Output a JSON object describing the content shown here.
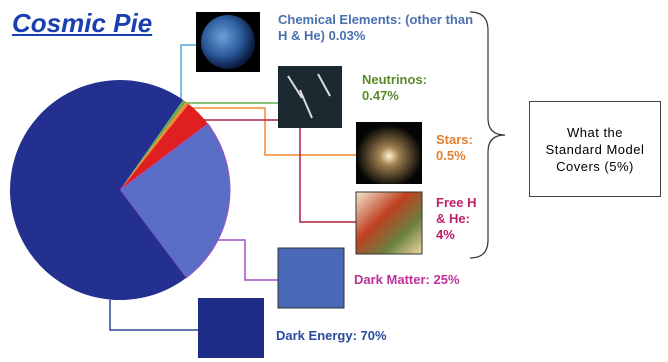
{
  "chart_data": {
    "type": "pie",
    "title": "Cosmic Pie",
    "categories": [
      "Chemical Elements: (other than H & He)",
      "Neutrinos:",
      "Stars:",
      "Free H & He:",
      "Dark Matter:",
      "Dark Energy:"
    ],
    "values": [
      0.03,
      0.47,
      0.5,
      4,
      25,
      70
    ],
    "value_labels": [
      "0.03%",
      "0.47%",
      "0.5%",
      "4%",
      "25%",
      "70%"
    ],
    "colors": [
      "#4fa8d8",
      "#5fae4e",
      "#f08a30",
      "#e02020",
      "#5a6ec6",
      "#23308f"
    ],
    "label_colors": [
      "#4a6fb0",
      "#5a8a2a",
      "#e08030",
      "#c0206a",
      "#c0309a",
      "#2a4aa0"
    ],
    "annotation": "What the Standard Model Covers (5%)"
  }
}
